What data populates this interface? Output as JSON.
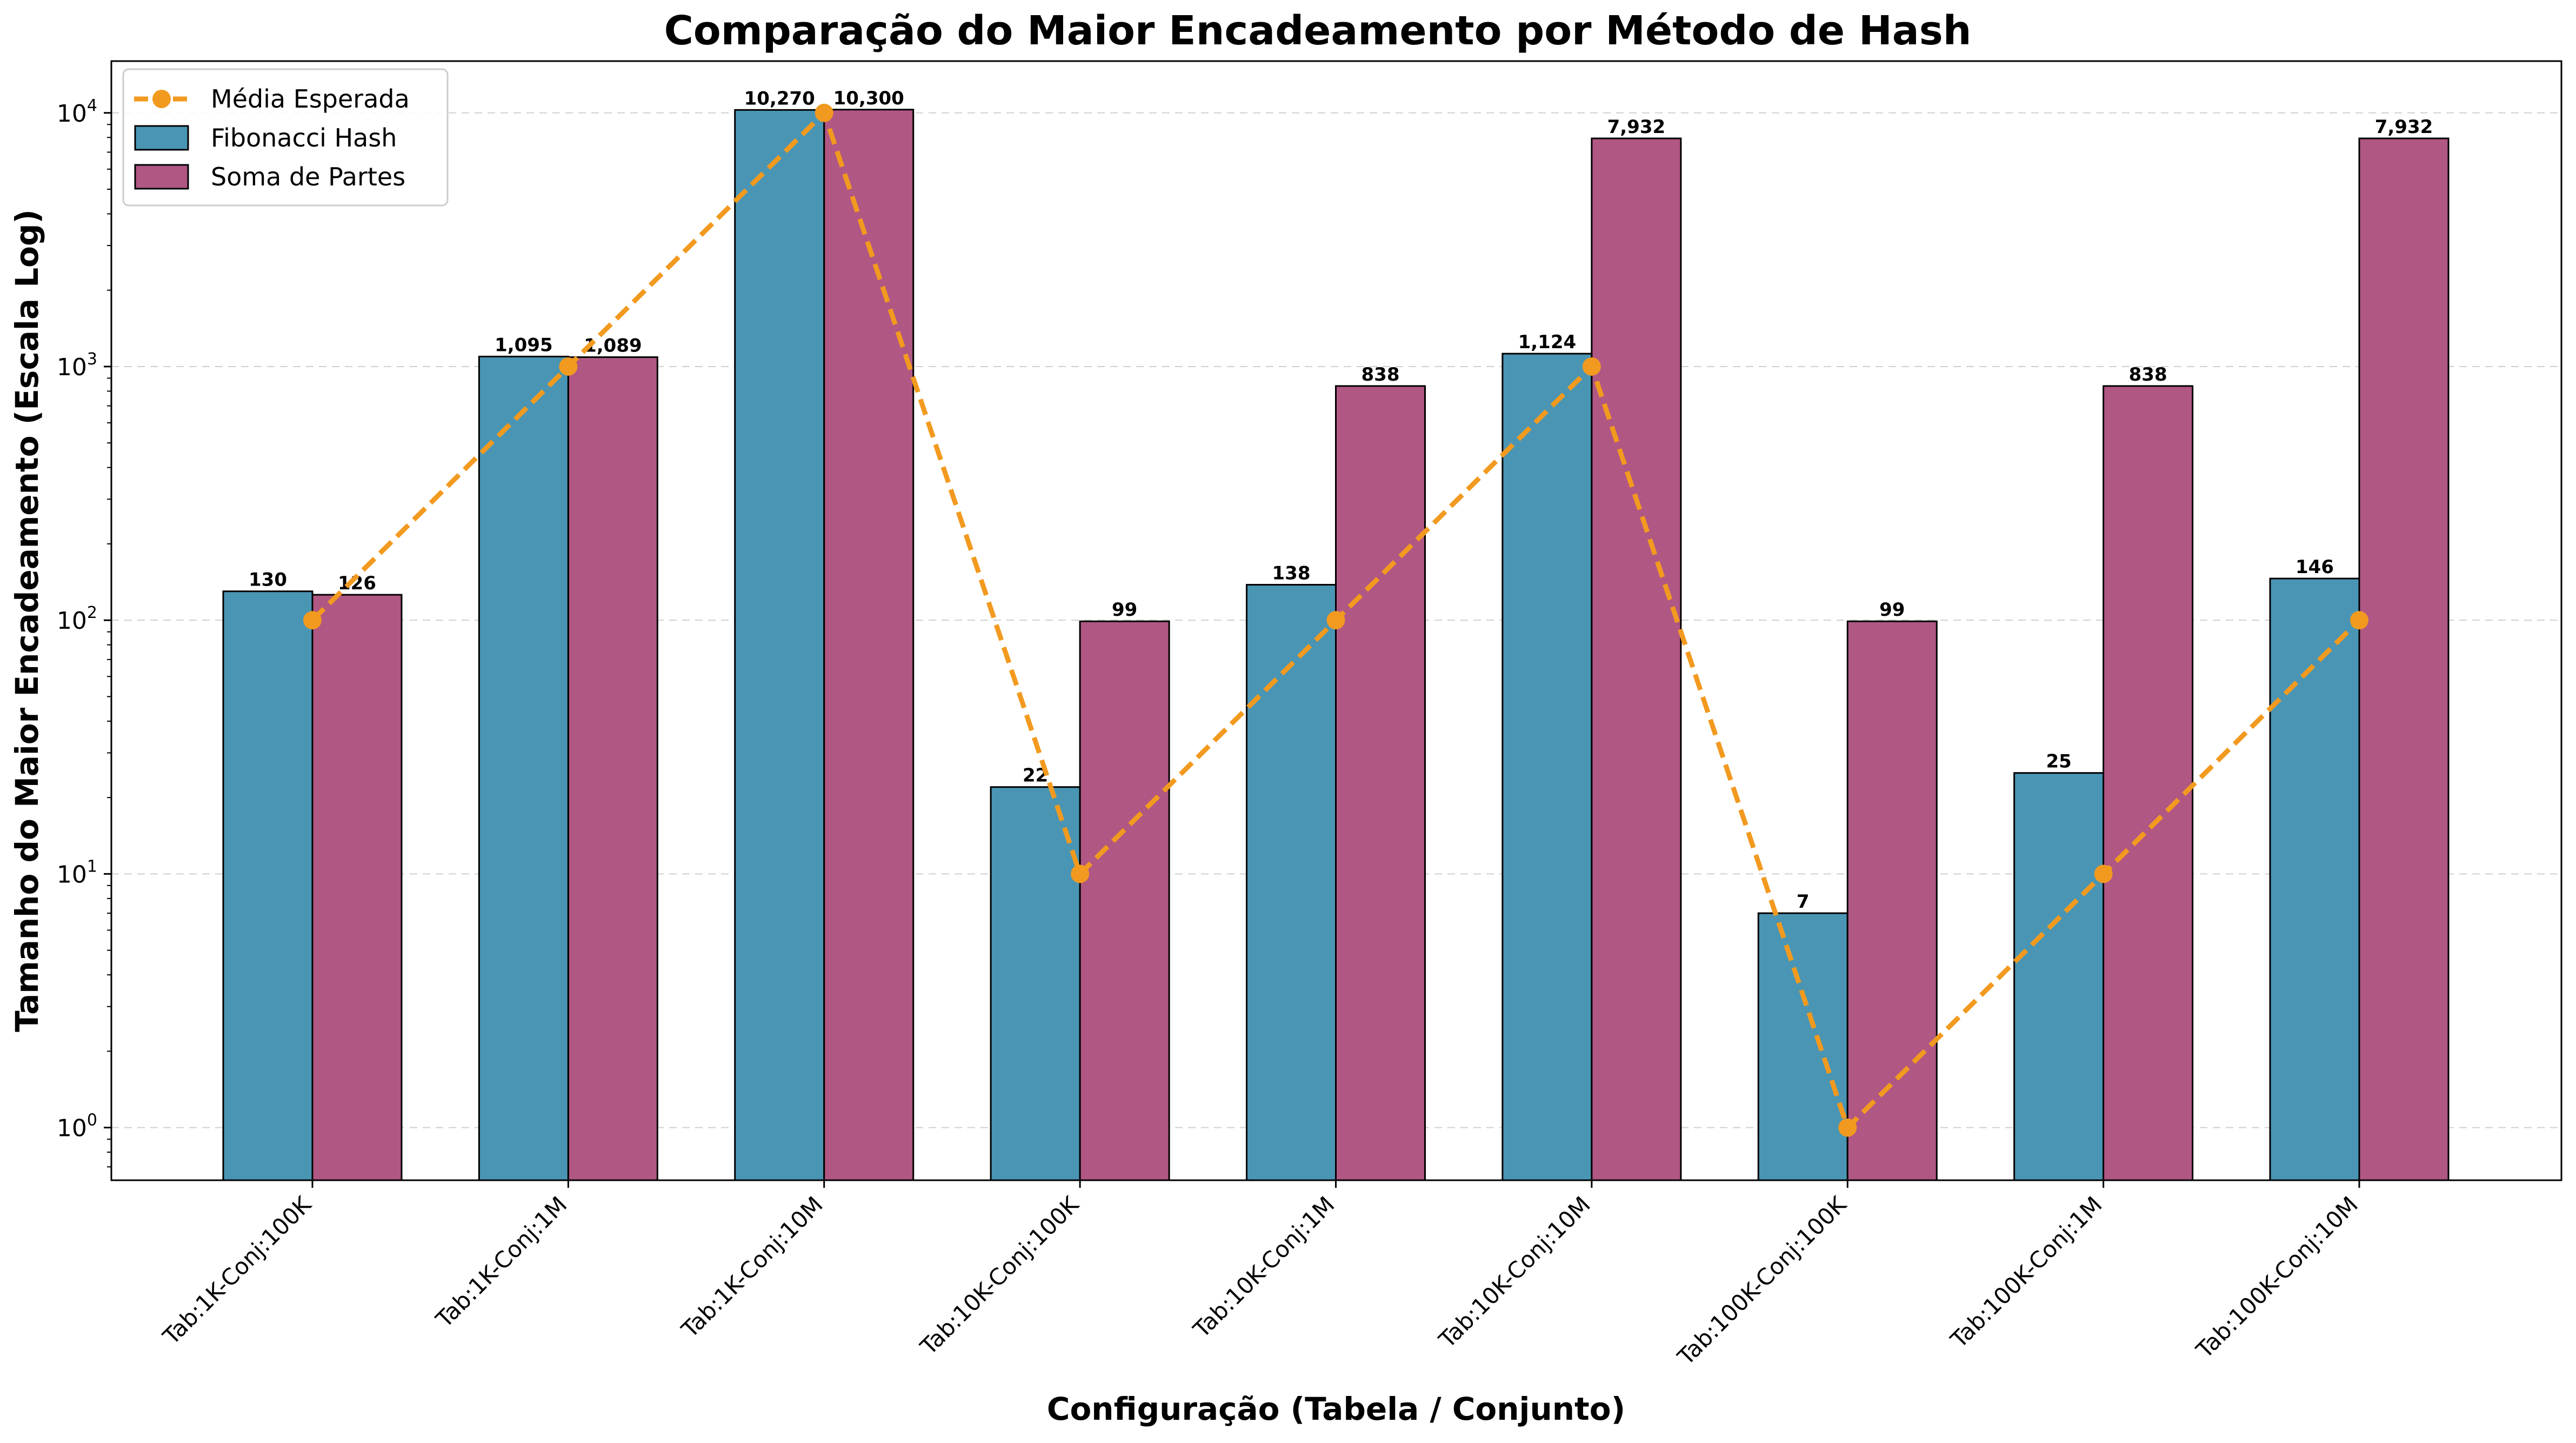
{
  "chart_data": {
    "type": "bar",
    "title": "Comparação do Maior Encadeamento por Método de Hash",
    "xlabel": "Configuração (Tabela / Conjunto)",
    "ylabel": "Tamanho do Maior Encadeamento (Escala Log)",
    "yscale": "log",
    "ylim": [
      0.62,
      16000
    ],
    "yticks": [
      {
        "value": 1,
        "mantissa": "10",
        "exp": "0"
      },
      {
        "value": 10,
        "mantissa": "10",
        "exp": "1"
      },
      {
        "value": 100,
        "mantissa": "10",
        "exp": "2"
      },
      {
        "value": 1000,
        "mantissa": "10",
        "exp": "3"
      },
      {
        "value": 10000,
        "mantissa": "10",
        "exp": "4"
      }
    ],
    "grid": "y-dashed",
    "legend_position": "top-left",
    "categories": [
      "Tab:1K-Conj:100K",
      "Tab:1K-Conj:1M",
      "Tab:1K-Conj:10M",
      "Tab:10K-Conj:100K",
      "Tab:10K-Conj:1M",
      "Tab:10K-Conj:10M",
      "Tab:100K-Conj:100K",
      "Tab:100K-Conj:1M",
      "Tab:100K-Conj:10M"
    ],
    "series": [
      {
        "name": "Fibonacci Hash",
        "kind": "bar",
        "color": "#4a95b4",
        "values": [
          130,
          1095,
          10270,
          22,
          138,
          1124,
          7,
          25,
          146
        ],
        "labels": [
          "130",
          "1,095",
          "10,270",
          "22",
          "138",
          "1,124",
          "7",
          "25",
          "146"
        ]
      },
      {
        "name": "Soma de Partes",
        "kind": "bar",
        "color": "#b05784",
        "values": [
          126,
          1089,
          10300,
          99,
          838,
          7932,
          99,
          838,
          7932
        ],
        "labels": [
          "126",
          "1,089",
          "10,300",
          "99",
          "838",
          "7,932",
          "99",
          "838",
          "7,932"
        ]
      },
      {
        "name": "Média Esperada",
        "kind": "line",
        "style": "dashed",
        "marker": "circle",
        "color": "#f29a1f",
        "values": [
          100,
          1000,
          10000,
          10,
          100,
          1000,
          1,
          10,
          100
        ]
      }
    ]
  }
}
